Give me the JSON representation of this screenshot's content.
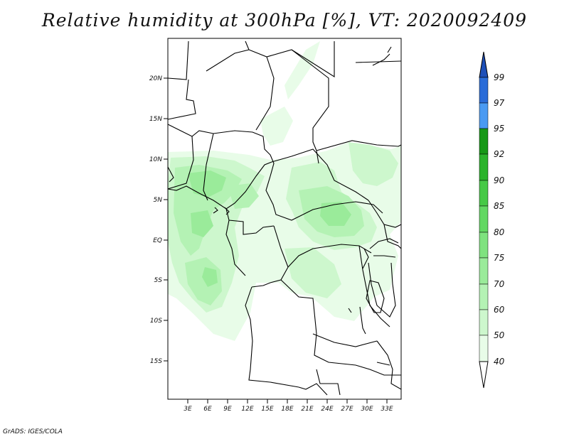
{
  "title": "Relative humidity at 300hPa [%], VT: 2020092409",
  "credit": "GrADS: IGES/COLA",
  "map": {
    "lat_labels": [
      "20N",
      "15N",
      "10N",
      "5N",
      "EQ",
      "5S",
      "10S",
      "15S"
    ],
    "lon_labels": [
      "3E",
      "6E",
      "9E",
      "12E",
      "15E",
      "18E",
      "21E",
      "24E",
      "27E",
      "30E",
      "33E"
    ]
  },
  "colorbar": {
    "levels": [
      "40",
      "50",
      "60",
      "70",
      "75",
      "80",
      "85",
      "90",
      "92",
      "95",
      "97",
      "99"
    ],
    "colors": [
      "#ffffff",
      "#e8fce8",
      "#cdf7cd",
      "#b4f2b4",
      "#9aeb9a",
      "#7fe27f",
      "#63d863",
      "#46c946",
      "#2bb32b",
      "#169816",
      "#4a9af2",
      "#2a6cd8",
      "#1d4fb8"
    ]
  }
}
